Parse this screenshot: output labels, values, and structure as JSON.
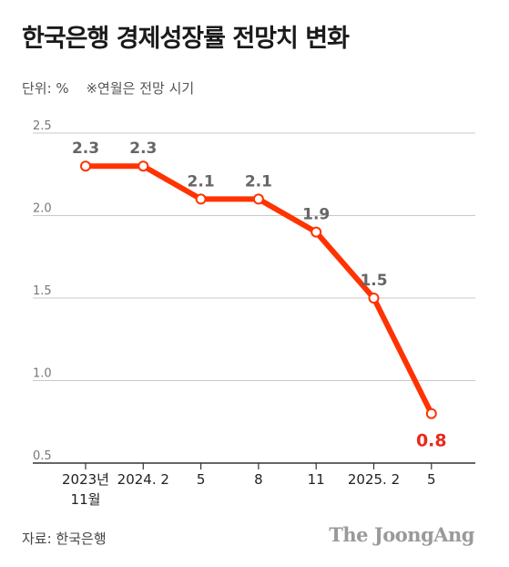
{
  "title": "한국은행 경제성장률 전망치 변화",
  "unit_label": "단위: %",
  "unit_note": "※연월은 전망 시기",
  "source": "자료: 한국은행",
  "brand": "The JoongAng",
  "colors": {
    "line": "#ff3300",
    "last_label": "#e8291c",
    "labels": "#666666",
    "grid": "#c8c8c8"
  },
  "chart_data": {
    "type": "line",
    "title": "한국은행 경제성장률 전망치 변화",
    "ylabel": "단위: %",
    "xlabel": "",
    "categories": [
      [
        "2023년",
        "11월"
      ],
      [
        "2024. 2"
      ],
      [
        "5"
      ],
      [
        "8"
      ],
      [
        "11"
      ],
      [
        "2025. 2"
      ],
      [
        "5"
      ]
    ],
    "values": [
      2.3,
      2.3,
      2.1,
      2.1,
      1.9,
      1.5,
      0.8
    ],
    "value_labels": [
      "2.3",
      "2.3",
      "2.1",
      "2.1",
      "1.9",
      "1.5",
      "0.8"
    ],
    "y_ticks": [
      "0.5",
      "1.0",
      "1.5",
      "2.0",
      "2.5"
    ],
    "ylim": [
      0.5,
      2.5
    ],
    "grid": true,
    "legend": "none"
  }
}
